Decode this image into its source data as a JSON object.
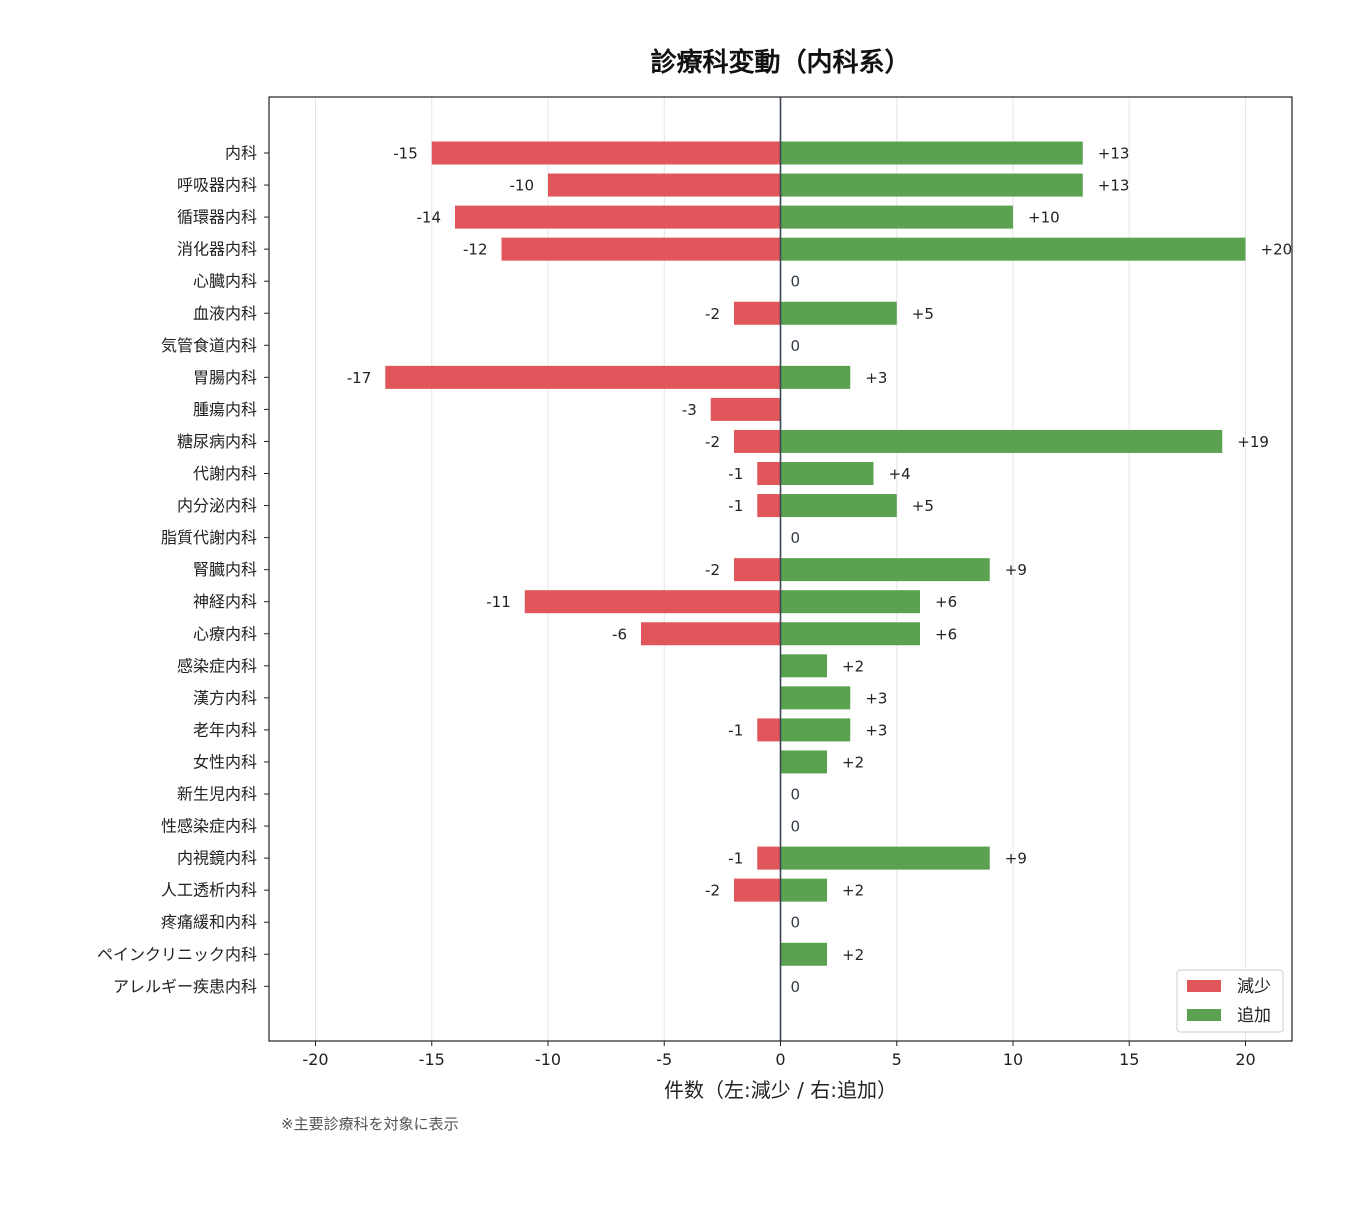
{
  "chart_data": {
    "type": "bar",
    "orientation": "horizontal",
    "title": "診療科変動（内科系）",
    "xlabel": "件数（左:減少 / 右:追加）",
    "ylabel": "",
    "xlim": [
      -22,
      22
    ],
    "xticks": [
      -20,
      -15,
      -10,
      -5,
      0,
      5,
      10,
      15,
      20
    ],
    "grid": "vertical",
    "legend_position": "bottom-right",
    "categories": [
      "内科",
      "呼吸器内科",
      "循環器内科",
      "消化器内科",
      "心臓内科",
      "血液内科",
      "気管食道内科",
      "胃腸内科",
      "腫瘍内科",
      "糖尿病内科",
      "代謝内科",
      "内分泌内科",
      "脂質代謝内科",
      "腎臓内科",
      "神経内科",
      "心療内科",
      "感染症内科",
      "漢方内科",
      "老年内科",
      "女性内科",
      "新生児内科",
      "性感染症内科",
      "内視鏡内科",
      "人工透析内科",
      "疼痛緩和内科",
      "ペインクリニック内科",
      "アレルギー疾患内科"
    ],
    "series": [
      {
        "name": "減少",
        "color": "#e0565b",
        "values": [
          -15,
          -10,
          -14,
          -12,
          0,
          -2,
          0,
          -17,
          -3,
          -2,
          -1,
          -1,
          0,
          -2,
          -11,
          -6,
          0,
          0,
          -1,
          0,
          0,
          0,
          -1,
          -2,
          0,
          0,
          0
        ]
      },
      {
        "name": "追加",
        "color": "#5aa150",
        "values": [
          13,
          13,
          10,
          20,
          0,
          5,
          0,
          3,
          0,
          19,
          4,
          5,
          0,
          9,
          6,
          6,
          2,
          3,
          3,
          2,
          0,
          0,
          9,
          2,
          0,
          2,
          0
        ]
      }
    ],
    "annotation": "※主要診療科を対象に表示"
  }
}
